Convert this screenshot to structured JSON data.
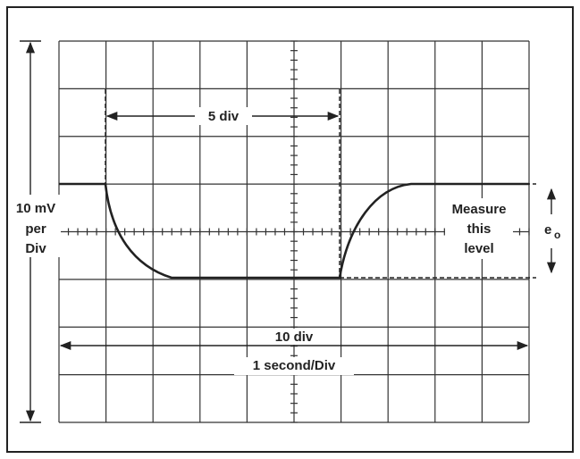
{
  "labels": {
    "span_top": "5 div",
    "vertical_scale": [
      "10 mV",
      "per",
      "Div"
    ],
    "measure": [
      "Measure",
      "this",
      "level"
    ],
    "output_symbol": "e",
    "output_subscript": "o",
    "span_bottom": "10 div",
    "time_scale": "1 second/Div"
  }
}
